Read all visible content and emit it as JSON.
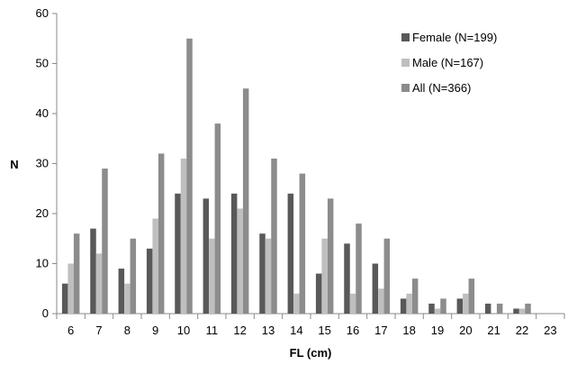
{
  "chart_data": {
    "type": "bar",
    "title": "",
    "xlabel": "FL (cm)",
    "ylabel": "N",
    "categories": [
      "6",
      "7",
      "8",
      "9",
      "10",
      "11",
      "12",
      "13",
      "14",
      "15",
      "16",
      "17",
      "18",
      "19",
      "20",
      "21",
      "22",
      "23"
    ],
    "ylim": [
      0,
      60
    ],
    "yticks": [
      "0",
      "10",
      "20",
      "30",
      "40",
      "50",
      "60"
    ],
    "grid": false,
    "legend_position": "top-right",
    "series": [
      {
        "name": "Female (N=199)",
        "color": "#595959",
        "values": [
          6,
          17,
          9,
          13,
          24,
          23,
          24,
          16,
          24,
          8,
          14,
          10,
          3,
          2,
          3,
          2,
          1,
          0
        ]
      },
      {
        "name": "Male (N=167)",
        "color": "#bfbfbf",
        "values": [
          10,
          12,
          6,
          19,
          31,
          15,
          21,
          15,
          4,
          15,
          4,
          5,
          4,
          1,
          4,
          0,
          1,
          0
        ]
      },
      {
        "name": "All (N=366)",
        "color": "#8c8c8c",
        "values": [
          16,
          29,
          15,
          32,
          55,
          38,
          45,
          31,
          28,
          23,
          18,
          15,
          7,
          3,
          7,
          2,
          2,
          0
        ]
      }
    ]
  }
}
